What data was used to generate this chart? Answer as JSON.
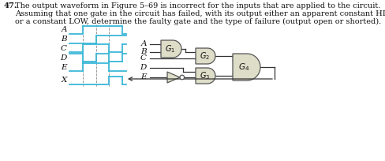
{
  "bg_color": "#ffffff",
  "waveform_color": "#3db8d8",
  "gate_fill": "#ddddc8",
  "gate_edge": "#555555",
  "line_color": "#333333",
  "text_color": "#111111",
  "signal_labels": [
    "A",
    "B",
    "C",
    "D",
    "E",
    "X"
  ],
  "gate_labels": [
    "G_1",
    "G_2",
    "G_3",
    "G_4"
  ],
  "text_line1": "47.  The output waveform in Figure 5–69 is incorrect for the inputs that are applied to the circuit.",
  "text_line2": "      Assuming that one gate in the circuit has failed, with its output either an apparent constant HIGH",
  "text_line3": "      or a constant LOW, determine the faulty gate and the type of failure (output open or shorted)."
}
